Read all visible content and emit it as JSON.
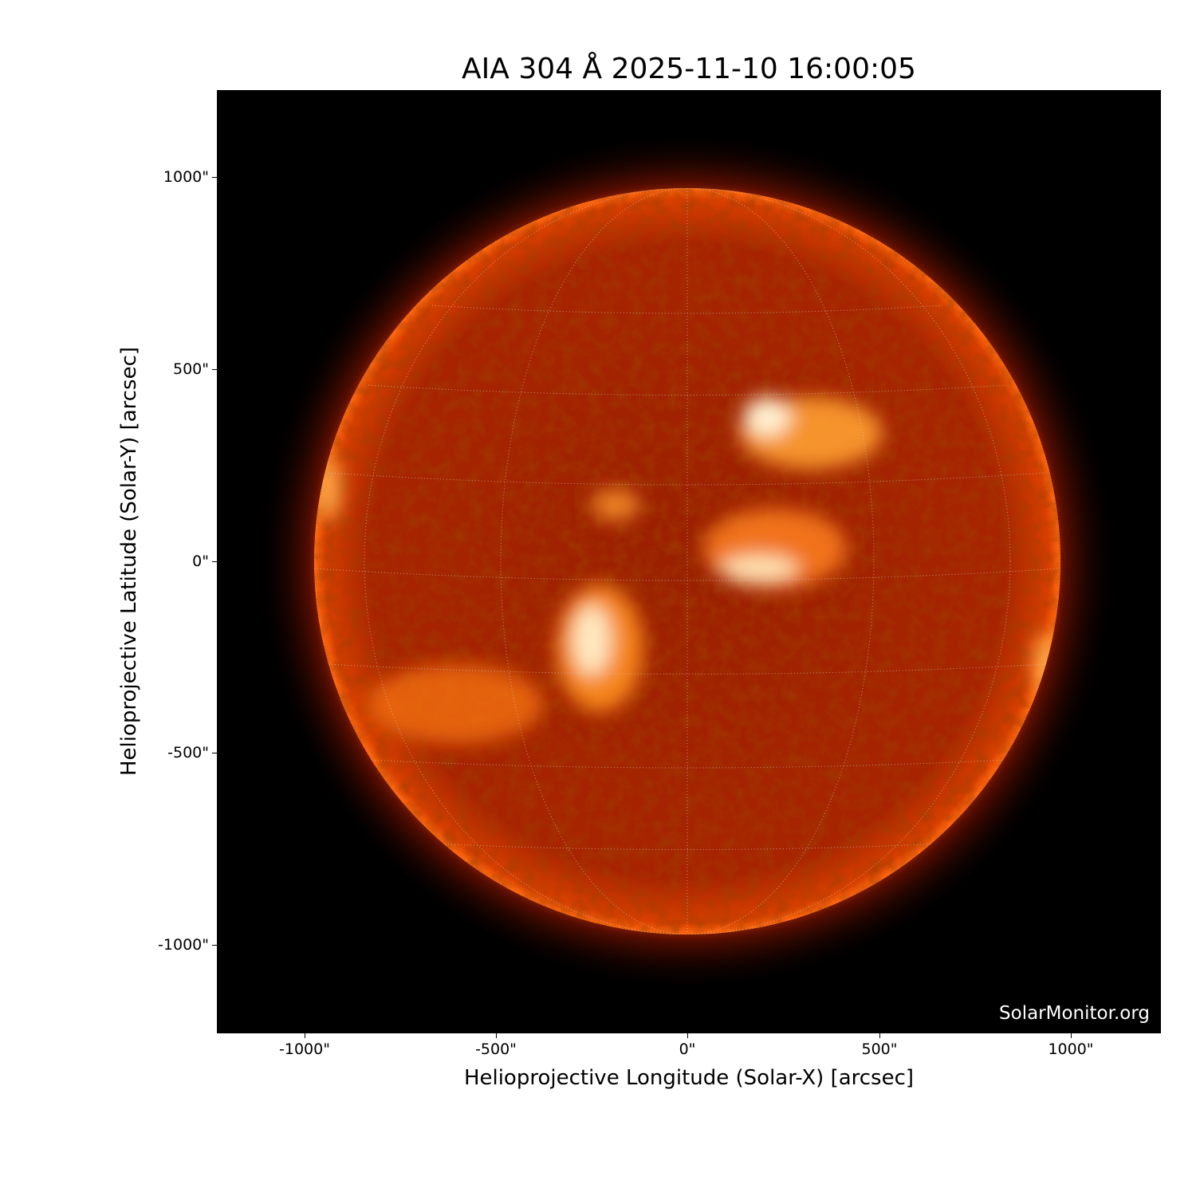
{
  "title": "AIA 304 Å 2025-11-10 16:00:05",
  "watermark": "SolarMonitor.org",
  "xaxis": {
    "label": "Helioprojective Longitude (Solar-X) [arcsec]",
    "ticks": [
      "-1000\"",
      "-500\"",
      "0\"",
      "500\"",
      "1000\""
    ],
    "tick_values": [
      -1000,
      -500,
      0,
      500,
      1000
    ]
  },
  "yaxis": {
    "label": "Helioprojective Latitude (Solar-Y) [arcsec]",
    "ticks": [
      "1000\"",
      "500\"",
      "0\"",
      "-500\"",
      "-1000\""
    ],
    "tick_values": [
      1000,
      500,
      0,
      -500,
      -1000
    ]
  },
  "colors": {
    "background": "#000000",
    "disk_dark": "#5a0a00",
    "disk_mid": "#b82a00",
    "bright": "#ffb040",
    "grid": "#cccccc"
  },
  "grid": "heliographic-lat-lon-dotted"
}
